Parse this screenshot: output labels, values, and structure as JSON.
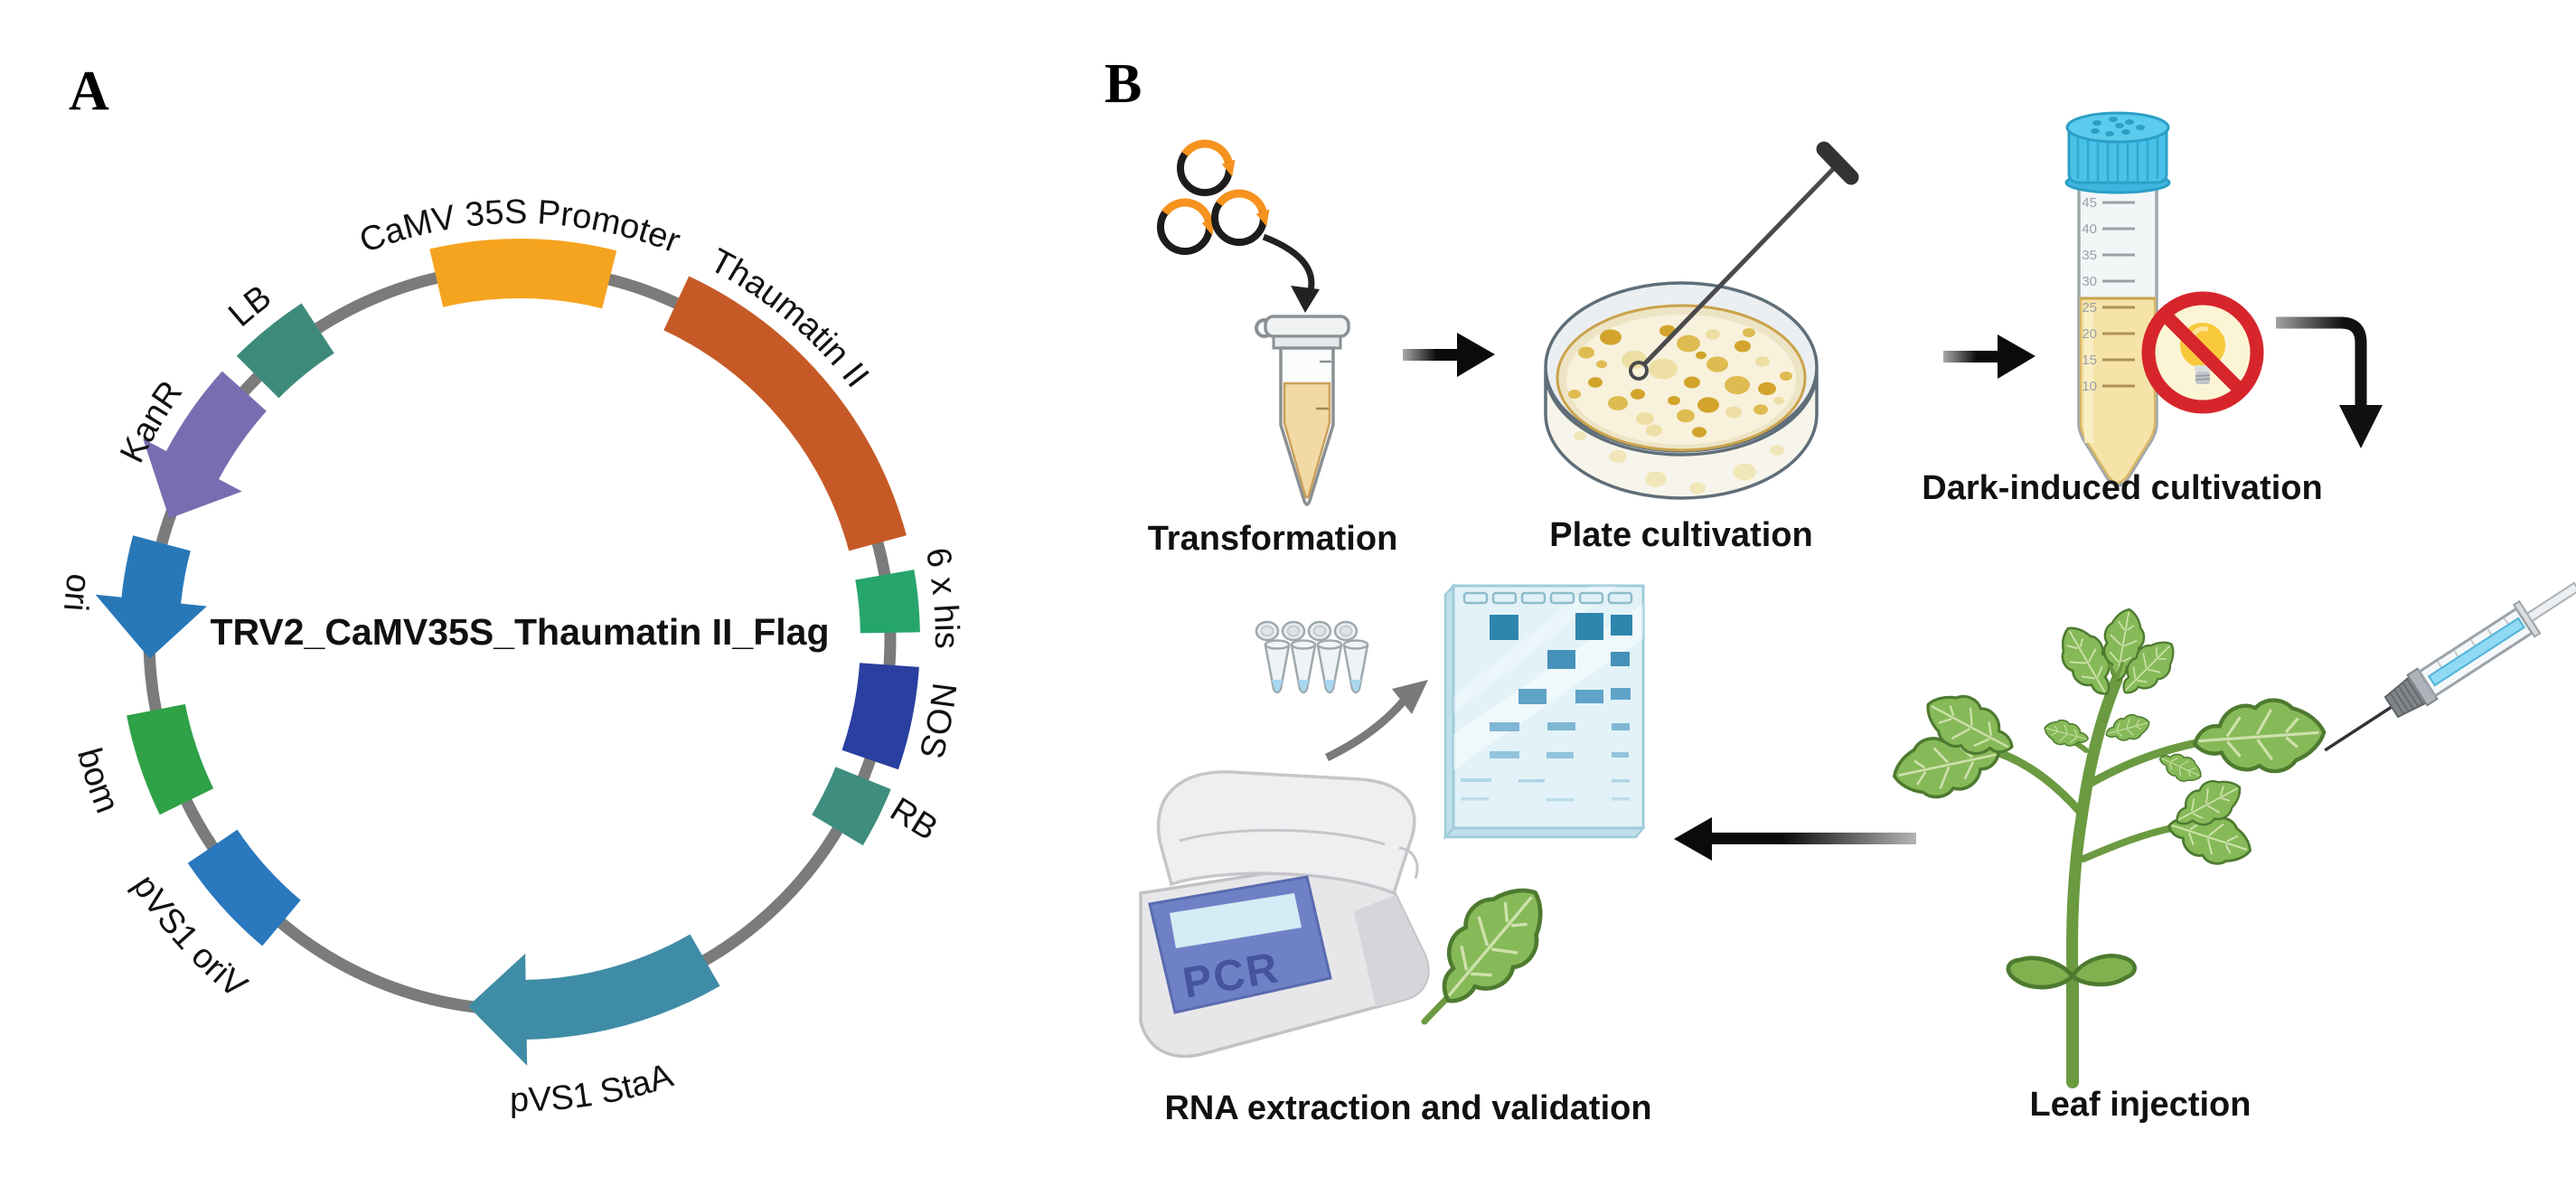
{
  "figure": {
    "panelA": {
      "label": "A",
      "plasmid": {
        "title": "TRV2_CaMV35S_Thaumatin II_Flag",
        "backbone_color": "#7b7b7b",
        "features": [
          {
            "name": "CaMV 35S Promoter",
            "color": "#F5A41F",
            "start_deg": -13,
            "end_deg": 14,
            "shape": "block",
            "label_mode": "arc-cw",
            "label_angle": 0,
            "label_radius": 460
          },
          {
            "name": "Thaumatin II",
            "color": "#C65A27",
            "start_deg": 25,
            "end_deg": 75,
            "shape": "block",
            "label_mode": "arc-cw",
            "label_angle": 40,
            "label_radius": 460
          },
          {
            "name": "6 x his",
            "color": "#26A56B",
            "start_deg": 80,
            "end_deg": 89,
            "shape": "block",
            "label_mode": "arc-cw",
            "label_angle": 84.5,
            "label_radius": 460
          },
          {
            "name": "NOS",
            "color": "#2A3F9F",
            "start_deg": 94,
            "end_deg": 109,
            "shape": "block",
            "label_mode": "arc-cw",
            "label_angle": 101,
            "label_radius": 460
          },
          {
            "name": "RB",
            "color": "#3E8D7E",
            "start_deg": 112,
            "end_deg": 121,
            "shape": "block",
            "label_mode": "straight",
            "label_angle": 116,
            "label_radius": 478,
            "label_rotation": 32
          },
          {
            "name": "pVS1 StaA",
            "color": "#3F8CA6",
            "start_deg": 150,
            "end_deg": 188,
            "shape": "arrow",
            "tip": "end",
            "label_mode": "arc-ccw",
            "label_angle": 171,
            "label_radius": 522
          },
          {
            "name": "pVS1 oriV",
            "color": "#2A78BE",
            "start_deg": 220,
            "end_deg": 236,
            "shape": "block",
            "label_mode": "arc-ccw",
            "label_angle": 228,
            "label_radius": 508
          },
          {
            "name": "bom",
            "color": "#2FA147",
            "start_deg": 244,
            "end_deg": 259,
            "shape": "block",
            "label_mode": "arc-ccw",
            "label_angle": 251.5,
            "label_radius": 505
          },
          {
            "name": "ori",
            "color": "#2878B8",
            "start_deg": 267,
            "end_deg": 285,
            "shape": "arrow",
            "tip": "start",
            "label_mode": "arc-ccw",
            "label_angle": 276,
            "label_radius": 505
          },
          {
            "name": "KanR",
            "color": "#7A6CB0",
            "start_deg": 289,
            "end_deg": 312,
            "shape": "arrow",
            "tip": "start",
            "label_mode": "arc-cw",
            "label_angle": 300.5,
            "label_radius": 462
          },
          {
            "name": "LB",
            "color": "#3E8A7A",
            "start_deg": 315,
            "end_deg": 327,
            "shape": "block",
            "label_mode": "arc-cw",
            "label_angle": 321,
            "label_radius": 462
          }
        ]
      }
    },
    "panelB": {
      "label": "B",
      "steps": [
        {
          "id": "transformation",
          "label": "Transformation"
        },
        {
          "id": "plate-cultivation",
          "label": "Plate cultivation"
        },
        {
          "id": "dark-induced-cultivation",
          "label": "Dark-induced cultivation"
        },
        {
          "id": "leaf-injection",
          "label": "Leaf injection"
        },
        {
          "id": "rna-extraction",
          "label": "RNA extraction and validation"
        }
      ],
      "pcr_machine_text": "PCR",
      "falcon_tube_graduations": [
        "45",
        "40",
        "35",
        "30",
        "25",
        "20",
        "15",
        "10"
      ]
    }
  }
}
